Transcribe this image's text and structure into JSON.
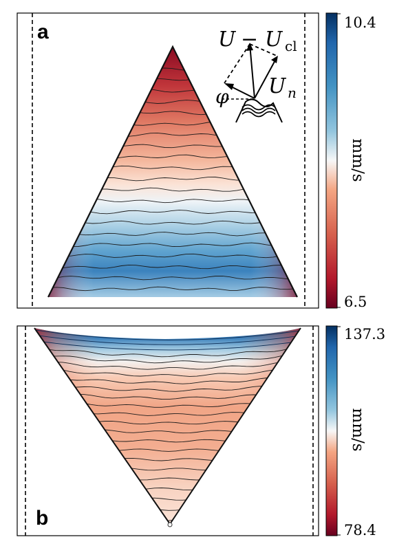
{
  "panels": {
    "a": {
      "label": "a",
      "colorbar": {
        "max_label": "10.4",
        "min_label": "6.5",
        "unit": "mm/s",
        "colormap": "RdBu"
      },
      "shape": "upward-triangle",
      "contour_count": 21
    },
    "b": {
      "label": "b",
      "colorbar": {
        "max_label": "137.3",
        "min_label": "78.4",
        "unit": "mm/s",
        "colormap": "RdBu"
      },
      "shape": "downward-triangle",
      "contour_count": 25
    }
  },
  "inset": {
    "lhs": "U",
    "minus": "−",
    "rhs_base": "U",
    "rhs_sub": "cl",
    "normal_base": "U",
    "normal_sub": "n",
    "angle": "φ"
  },
  "colors": {
    "red": "#67001f",
    "light_red": "#f4a582",
    "white": "#f7f7f7",
    "light_blue": "#92c5de",
    "blue": "#053061"
  }
}
